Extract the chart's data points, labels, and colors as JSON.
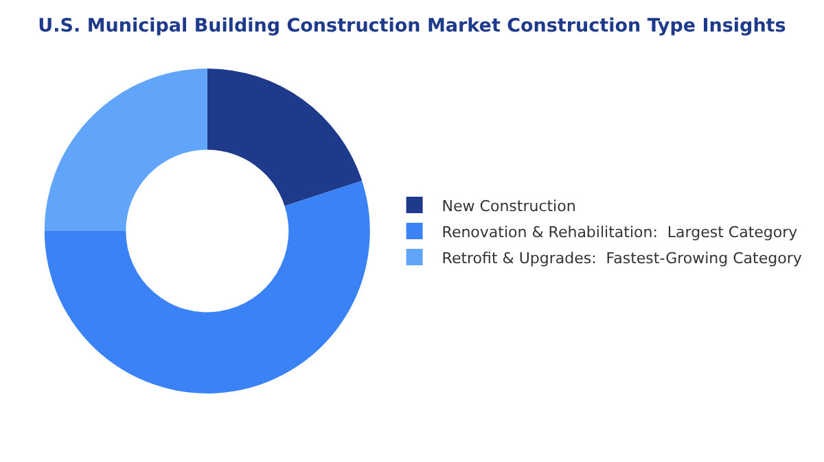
{
  "chart_data": {
    "type": "donut",
    "title": "U.S. Municipal Building Construction Market Construction Type Insights",
    "categories": [
      "New Construction",
      "Renovation & Rehabilitation:  Largest Category",
      "Retrofit & Upgrades:  Fastest-Growing Category"
    ],
    "values": [
      20,
      55,
      25
    ],
    "colors": [
      "#1e3a8a",
      "#3b82f6",
      "#60a5fa"
    ],
    "legend": "right"
  }
}
